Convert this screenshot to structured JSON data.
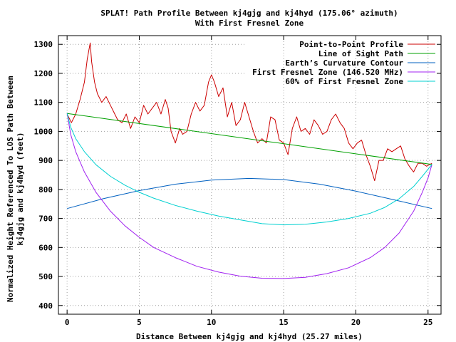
{
  "chart_data": {
    "type": "line",
    "title_line1": "SPLAT! Path Profile Between kj4gjg and kj4hyd (175.06° azimuth)",
    "title_line2": "With First Fresnel Zone",
    "xlabel": "Distance Between kj4gjg and kj4hyd (25.27 miles)",
    "ylabel_line1": "Normalized Height Referenced To LOS Path Between",
    "ylabel_line2": "kj4gjg and kj4hyd (feet)",
    "xlim": [
      -0.6,
      25.9
    ],
    "ylim": [
      370,
      1330
    ],
    "xticks": [
      {
        "value": 0,
        "label": "0"
      },
      {
        "value": 5,
        "label": "5"
      },
      {
        "value": 10,
        "label": "10"
      },
      {
        "value": 15,
        "label": "15"
      },
      {
        "value": 20,
        "label": "20"
      },
      {
        "value": 25,
        "label": "25"
      }
    ],
    "yticks": [
      {
        "value": 400,
        "label": "400"
      },
      {
        "value": 500,
        "label": "500"
      },
      {
        "value": 600,
        "label": "600"
      },
      {
        "value": 700,
        "label": "700"
      },
      {
        "value": 800,
        "label": "800"
      },
      {
        "value": 900,
        "label": "900"
      },
      {
        "value": 1000,
        "label": "1000"
      },
      {
        "value": 1100,
        "label": "1100"
      },
      {
        "value": 1200,
        "label": "1200"
      },
      {
        "value": 1300,
        "label": "1300"
      }
    ],
    "grid": true,
    "legend_position": "top-right",
    "series": [
      {
        "name": "Point-to-Point Profile",
        "color": "#cc0000",
        "x": [
          0,
          0.3,
          0.6,
          0.9,
          1.2,
          1.4,
          1.6,
          1.7,
          1.9,
          2.1,
          2.4,
          2.7,
          3.0,
          3.2,
          3.5,
          3.8,
          4.1,
          4.4,
          4.7,
          5.0,
          5.3,
          5.6,
          5.9,
          6.2,
          6.5,
          6.8,
          7.0,
          7.2,
          7.5,
          7.8,
          8.0,
          8.3,
          8.6,
          8.9,
          9.2,
          9.5,
          9.8,
          10.0,
          10.2,
          10.5,
          10.8,
          11.1,
          11.4,
          11.7,
          12.0,
          12.3,
          12.6,
          12.9,
          13.2,
          13.5,
          13.8,
          14.1,
          14.4,
          14.7,
          15.0,
          15.3,
          15.6,
          15.9,
          16.2,
          16.5,
          16.8,
          17.1,
          17.4,
          17.7,
          18.0,
          18.3,
          18.6,
          18.9,
          19.2,
          19.5,
          19.8,
          20.1,
          20.4,
          20.7,
          21.0,
          21.3,
          21.6,
          21.9,
          22.2,
          22.5,
          22.8,
          23.1,
          23.4,
          23.7,
          24.0,
          24.3,
          24.6,
          24.9,
          25.27
        ],
        "y": [
          1060,
          1030,
          1060,
          1110,
          1170,
          1250,
          1305,
          1240,
          1170,
          1130,
          1100,
          1120,
          1090,
          1070,
          1040,
          1030,
          1060,
          1010,
          1050,
          1030,
          1090,
          1060,
          1080,
          1100,
          1060,
          1110,
          1080,
          1000,
          960,
          1010,
          990,
          1000,
          1060,
          1100,
          1070,
          1090,
          1170,
          1195,
          1170,
          1120,
          1150,
          1050,
          1100,
          1020,
          1040,
          1100,
          1050,
          1000,
          960,
          975,
          960,
          1050,
          1040,
          970,
          960,
          920,
          1010,
          1050,
          1000,
          1010,
          990,
          1040,
          1020,
          990,
          1000,
          1040,
          1060,
          1030,
          1010,
          960,
          940,
          960,
          970,
          920,
          880,
          830,
          900,
          900,
          940,
          930,
          940,
          950,
          905,
          880,
          860,
          890,
          890,
          880,
          890
        ]
      },
      {
        "name": "Line of Sight Path",
        "color": "#00a000",
        "x": [
          0,
          25.27
        ],
        "y": [
          1062,
          886
        ]
      },
      {
        "name": "Earth’s Curvature Contour",
        "color": "#0060c0",
        "x": [
          0,
          2.5,
          5,
          7.5,
          10,
          12.6,
          15,
          17.5,
          20,
          22.5,
          25.27
        ],
        "y": [
          734,
          768,
          796,
          818,
          832,
          838,
          834,
          818,
          794,
          766,
          734
        ]
      },
      {
        "name": "First Fresnel Zone (146.520 MHz)",
        "color": "#a020f0",
        "x": [
          0,
          0.25,
          0.6,
          1.2,
          2,
          3,
          4,
          5,
          6,
          7.5,
          9,
          10.5,
          12,
          13.5,
          15,
          16.5,
          18,
          19.5,
          21,
          22,
          23,
          24,
          24.6,
          25,
          25.27
        ],
        "y": [
          1062,
          990,
          930,
          860,
          790,
          725,
          675,
          635,
          600,
          565,
          535,
          515,
          501,
          494,
          493,
          497,
          510,
          530,
          565,
          600,
          650,
          725,
          790,
          840,
          886
        ]
      },
      {
        "name": "60% of First Fresnel Zone",
        "color": "#00d0d0",
        "x": [
          0,
          0.25,
          0.6,
          1.2,
          2,
          3,
          4,
          5,
          6,
          7.5,
          9,
          10.5,
          12,
          13.5,
          15,
          16.5,
          18,
          19.5,
          21,
          22,
          23,
          24,
          24.6,
          25,
          25.27
        ],
        "y": [
          1062,
          1015,
          975,
          930,
          885,
          845,
          815,
          790,
          770,
          745,
          725,
          708,
          695,
          682,
          678,
          680,
          688,
          700,
          718,
          738,
          768,
          810,
          845,
          870,
          886
        ]
      }
    ]
  }
}
